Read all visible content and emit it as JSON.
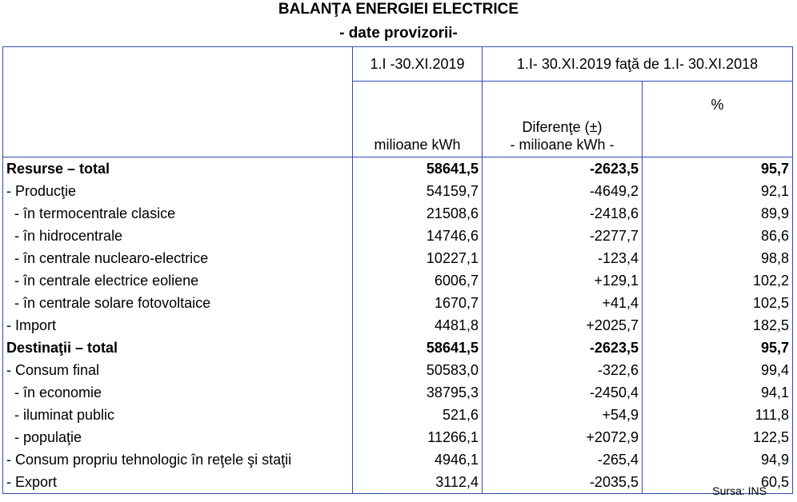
{
  "title": "BALANŢA ENERGIEI ELECTRICE",
  "subtitle": "- date provizorii-",
  "header": {
    "period_current": "1.I -30.XI.2019",
    "period_compare": "1.I- 30.XI.2019 faţă de 1.I- 30.XI.2018",
    "unit_col": "milioane kWh",
    "diff_col_line1": "Diferenţe (±)",
    "diff_col_line2": "- milioane kWh -",
    "pct_col": "%"
  },
  "rows": [
    {
      "label": "Resurse – total",
      "value": "58641,5",
      "diff": "-2623,5",
      "pct": "95,7",
      "bold": true
    },
    {
      "label": "- Producţie",
      "value": "54159,7",
      "diff": "-4649,2",
      "pct": "92,1"
    },
    {
      "label": "  - în termocentrale clasice",
      "value": "21508,6",
      "diff": "-2418,6",
      "pct": "89,9"
    },
    {
      "label": "  - în hidrocentrale",
      "value": "14746,6",
      "diff": "-2277,7",
      "pct": "86,6"
    },
    {
      "label": "  - în centrale nuclearo-electrice",
      "value": "10227,1",
      "diff": "-123,4",
      "pct": "98,8"
    },
    {
      "label": "  - în centrale electrice eoliene",
      "value": "6006,7",
      "diff": "+129,1",
      "pct": "102,2"
    },
    {
      "label": "  - în centrale solare fotovoltaice",
      "value": "1670,7",
      "diff": "+41,4",
      "pct": "102,5"
    },
    {
      "label": "- Import",
      "value": "4481,8",
      "diff": "+2025,7",
      "pct": "182,5"
    },
    {
      "label": "Destinaţii – total",
      "value": "58641,5",
      "diff": "-2623,5",
      "pct": "95,7",
      "bold": true
    },
    {
      "label": "- Consum final",
      "value": "50583,0",
      "diff": "-322,6",
      "pct": "99,4"
    },
    {
      "label": "  - în economie",
      "value": "38795,3",
      "diff": "-2450,4",
      "pct": "94,1"
    },
    {
      "label": "  - iluminat public",
      "value": "521,6",
      "diff": "+54,9",
      "pct": "111,8"
    },
    {
      "label": "  - populaţie",
      "value": "11266,1",
      "diff": "+2072,9",
      "pct": "122,5"
    },
    {
      "label": "- Consum propriu tehnologic în reţele şi staţii",
      "value": "4946,1",
      "diff": "-265,4",
      "pct": "94,9"
    },
    {
      "label": "- Export",
      "value": "3112,4",
      "diff": "-2035,5",
      "pct": "60,5"
    }
  ],
  "source": "Sursa: INS"
}
